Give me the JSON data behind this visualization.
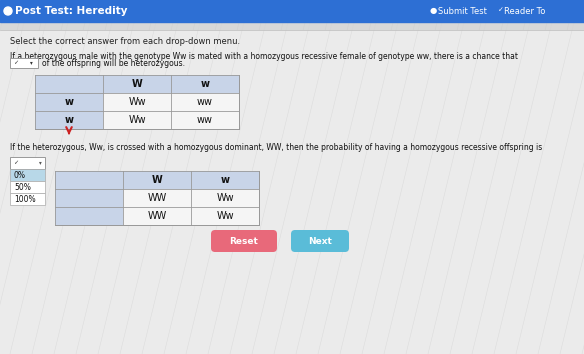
{
  "title": "Post Test: Heredity",
  "header_bg": "#2d6fd4",
  "header_text_color": "#ffffff",
  "top_right_text1": "Submit Test",
  "top_right_text2": "Reader To",
  "body_bg": "#d8d8d8",
  "content_bg": "#e8e8e8",
  "instruction": "Select the correct answer from each drop-down menu.",
  "question1_line1": "If a heterozygous male with the genotype Ww is mated with a homozygous recessive female of genotype ww, there is a chance that",
  "question1_line2": "of the offspring will be heterozygous.",
  "table1": {
    "col_headers": [
      "W",
      "w"
    ],
    "row_headers": [
      "w",
      "w"
    ],
    "cells": [
      [
        "Ww",
        "ww"
      ],
      [
        "Ww",
        "ww"
      ]
    ]
  },
  "question2": "If the heterozygous, Ww, is crossed with a homozygous dominant, WW, then the probability of having a homozygous recessive offspring is",
  "dropdown2_options": [
    "0%",
    "50%",
    "100%"
  ],
  "table2": {
    "col_headers": [
      "W",
      "w"
    ],
    "row_headers": [
      "",
      ""
    ],
    "cells": [
      [
        "WW",
        "Ww"
      ],
      [
        "WW",
        "Ww"
      ]
    ]
  },
  "reset_btn_color": "#e8697a",
  "next_btn_color": "#5abcd8",
  "reset_text": "Reset",
  "next_text": "Next",
  "cell_shade": "#c8d4e8",
  "table_bg": "#f0f0f0",
  "dropdown_bg": "#b8d8e8"
}
